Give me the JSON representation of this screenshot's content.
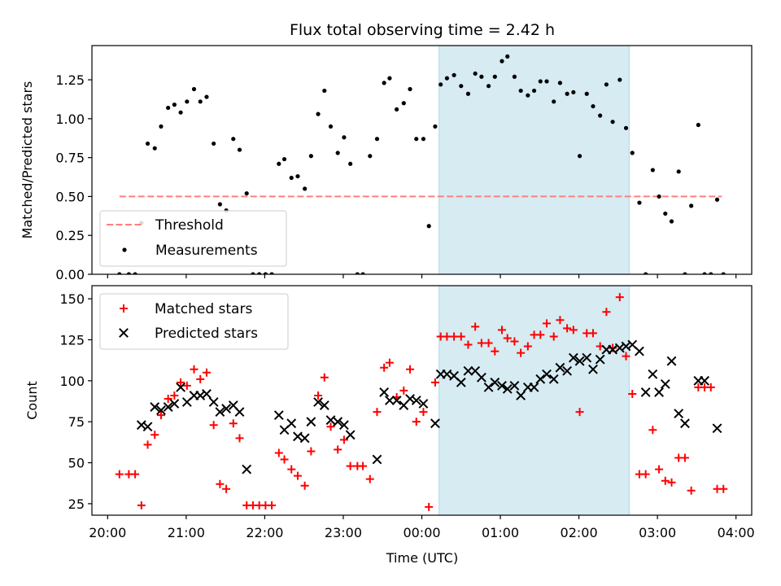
{
  "chart_data": [
    {
      "type": "scatter",
      "title": "Flux total observing time = 2.42 h",
      "xlabel": "",
      "ylabel": "Matched/Predicted stars",
      "xlim": [
        19.8,
        28.2
      ],
      "ylim": [
        0,
        1.47
      ],
      "yticks": [
        0,
        0.25,
        0.5,
        0.75,
        1.0,
        1.25
      ],
      "ytick_labels": [
        "0.00",
        "0.25",
        "0.50",
        "0.75",
        "1.00",
        "1.25"
      ],
      "highlight_span": [
        24.22,
        26.64
      ],
      "threshold": {
        "name": "Threshold",
        "value": 0.5,
        "x_range": [
          20.15,
          27.82
        ],
        "color": "#ff7f7f"
      },
      "legend": {
        "placement": "lower-left",
        "entries": [
          "Threshold",
          "Measurements"
        ]
      },
      "series": [
        {
          "name": "Measurements",
          "color": "#000000",
          "x": [
            20.15,
            20.27,
            20.35,
            20.43,
            20.51,
            20.6,
            20.68,
            20.77,
            20.85,
            20.93,
            21.01,
            21.1,
            21.18,
            21.26,
            21.35,
            21.43,
            21.51,
            21.6,
            21.68,
            21.77,
            21.85,
            21.93,
            22.01,
            22.09,
            22.18,
            22.25,
            22.34,
            22.42,
            22.51,
            22.59,
            22.68,
            22.76,
            22.84,
            22.93,
            23.01,
            23.09,
            23.18,
            23.25,
            23.34,
            23.43,
            23.52,
            23.59,
            23.68,
            23.77,
            23.85,
            23.93,
            24.02,
            24.09,
            24.17,
            24.24,
            24.32,
            24.41,
            24.5,
            24.59,
            24.68,
            24.76,
            24.85,
            24.93,
            25.02,
            25.09,
            25.18,
            25.26,
            25.35,
            25.43,
            25.51,
            25.59,
            25.68,
            25.76,
            25.85,
            25.93,
            26.01,
            26.1,
            26.18,
            26.27,
            26.35,
            26.43,
            26.52,
            26.6,
            26.68,
            26.77,
            26.85,
            26.94,
            27.02,
            27.1,
            27.18,
            27.27,
            27.35,
            27.43,
            27.52,
            27.6,
            27.68,
            27.76,
            27.84
          ],
          "y": [
            0,
            0,
            0,
            0.33,
            0.84,
            0.81,
            0.95,
            1.07,
            1.09,
            1.04,
            1.11,
            1.19,
            1.11,
            1.14,
            0.84,
            0.45,
            0.41,
            0.87,
            0.8,
            0.52,
            0,
            0,
            0,
            0,
            0.71,
            0.74,
            0.62,
            0.63,
            0.55,
            0.76,
            1.03,
            1.18,
            0.95,
            0.78,
            0.88,
            0.71,
            0,
            0,
            0.76,
            0.87,
            1.23,
            1.26,
            1.06,
            1.1,
            1.19,
            0.87,
            0.87,
            0.31,
            0.95,
            1.22,
            1.26,
            1.28,
            1.21,
            1.16,
            1.29,
            1.27,
            1.21,
            1.27,
            1.37,
            1.4,
            1.27,
            1.18,
            1.15,
            1.18,
            1.24,
            1.24,
            1.11,
            1.23,
            1.16,
            1.17,
            0.76,
            1.16,
            1.08,
            1.02,
            1.22,
            0.98,
            1.25,
            0.94,
            0.78,
            0.46,
            0,
            0.67,
            0.5,
            0.39,
            0.34,
            0.66,
            0,
            0.44,
            0.96,
            0,
            0,
            0.48,
            0
          ]
        }
      ]
    },
    {
      "type": "scatter",
      "title": "",
      "xlabel": "Time (UTC)",
      "ylabel": "Count",
      "xlim": [
        19.8,
        28.2
      ],
      "ylim": [
        18,
        158
      ],
      "yticks": [
        25,
        50,
        75,
        100,
        125,
        150
      ],
      "ytick_labels": [
        "25",
        "50",
        "75",
        "100",
        "125",
        "150"
      ],
      "xticks": [
        20,
        21,
        22,
        23,
        24,
        25,
        26,
        27,
        28
      ],
      "xtick_labels": [
        "20:00",
        "21:00",
        "22:00",
        "23:00",
        "00:00",
        "01:00",
        "02:00",
        "03:00",
        "04:00"
      ],
      "highlight_span": [
        24.22,
        26.64
      ],
      "legend": {
        "placement": "upper-left",
        "entries": [
          "Matched stars",
          "Predicted stars"
        ]
      },
      "series": [
        {
          "name": "Matched stars",
          "marker": "plus",
          "color": "#ff0000",
          "x": [
            20.15,
            20.27,
            20.35,
            20.43,
            20.51,
            20.6,
            20.68,
            20.77,
            20.85,
            20.93,
            21.01,
            21.1,
            21.18,
            21.26,
            21.35,
            21.43,
            21.51,
            21.6,
            21.68,
            21.77,
            21.85,
            21.93,
            22.01,
            22.09,
            22.18,
            22.25,
            22.34,
            22.42,
            22.51,
            22.59,
            22.68,
            22.76,
            22.84,
            22.93,
            23.01,
            23.09,
            23.18,
            23.25,
            23.34,
            23.43,
            23.52,
            23.59,
            23.68,
            23.77,
            23.85,
            23.93,
            24.02,
            24.09,
            24.17,
            24.24,
            24.32,
            24.41,
            24.5,
            24.59,
            24.68,
            24.76,
            24.85,
            24.93,
            25.02,
            25.09,
            25.18,
            25.26,
            25.35,
            25.43,
            25.51,
            25.59,
            25.68,
            25.76,
            25.85,
            25.93,
            26.01,
            26.1,
            26.18,
            26.27,
            26.35,
            26.43,
            26.52,
            26.6,
            26.68,
            26.77,
            26.85,
            26.94,
            27.02,
            27.1,
            27.18,
            27.27,
            27.35,
            27.43,
            27.52,
            27.6,
            27.68,
            27.76,
            27.84
          ],
          "y": [
            43,
            43,
            43,
            24,
            61,
            67,
            79,
            89,
            91,
            99,
            97,
            107,
            101,
            105,
            73,
            37,
            34,
            74,
            65,
            24,
            24,
            24,
            24,
            24,
            56,
            52,
            46,
            42,
            36,
            57,
            91,
            102,
            72,
            58,
            64,
            48,
            48,
            48,
            40,
            81,
            108,
            111,
            90,
            94,
            107,
            75,
            81,
            23,
            99,
            127,
            127,
            127,
            127,
            122,
            133,
            123,
            123,
            118,
            131,
            126,
            124,
            117,
            121,
            128,
            128,
            135,
            127,
            137,
            132,
            131,
            81,
            129,
            129,
            121,
            142,
            120,
            151,
            115,
            92,
            43,
            43,
            70,
            46,
            39,
            38,
            53,
            53,
            33,
            96,
            96,
            96,
            34,
            34
          ]
        },
        {
          "name": "Predicted stars",
          "marker": "x",
          "color": "#000000",
          "x": [
            20.43,
            20.51,
            20.6,
            20.68,
            20.77,
            20.85,
            20.93,
            21.01,
            21.1,
            21.18,
            21.26,
            21.35,
            21.43,
            21.51,
            21.6,
            21.68,
            21.77,
            22.18,
            22.25,
            22.34,
            22.42,
            22.51,
            22.59,
            22.68,
            22.76,
            22.84,
            22.93,
            23.01,
            23.09,
            23.43,
            23.52,
            23.59,
            23.68,
            23.77,
            23.85,
            23.93,
            24.02,
            24.17,
            24.24,
            24.32,
            24.41,
            24.5,
            24.59,
            24.68,
            24.76,
            24.85,
            24.93,
            25.02,
            25.09,
            25.18,
            25.26,
            25.35,
            25.43,
            25.51,
            25.59,
            25.68,
            25.76,
            25.85,
            25.93,
            26.01,
            26.1,
            26.18,
            26.27,
            26.35,
            26.43,
            26.52,
            26.6,
            26.68,
            26.77,
            26.85,
            26.94,
            27.02,
            27.1,
            27.18,
            27.27,
            27.35,
            27.52,
            27.6,
            27.76
          ],
          "y": [
            73,
            72,
            84,
            82,
            84,
            86,
            96,
            87,
            91,
            91,
            92,
            87,
            81,
            83,
            85,
            81,
            46,
            79,
            70,
            74,
            66,
            65,
            75,
            87,
            85,
            76,
            75,
            73,
            67,
            52,
            93,
            88,
            88,
            85,
            89,
            88,
            86,
            74,
            104,
            104,
            103,
            99,
            106,
            106,
            102,
            96,
            99,
            97,
            95,
            97,
            91,
            96,
            96,
            101,
            104,
            101,
            108,
            106,
            114,
            112,
            114,
            107,
            113,
            119,
            119,
            120,
            121,
            122,
            118,
            93,
            104,
            93,
            98,
            112,
            80,
            74,
            100,
            100,
            71
          ]
        }
      ]
    }
  ]
}
